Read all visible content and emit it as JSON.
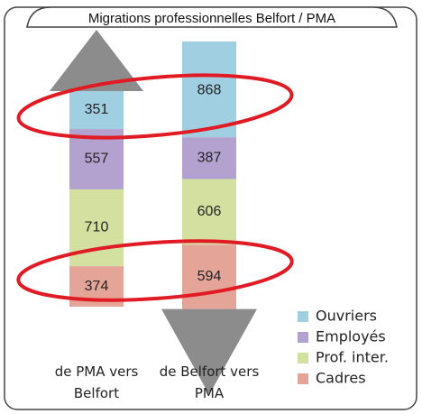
{
  "chart_data": {
    "type": "stacked-arrow",
    "title": "Migrations professionnelles Belfort / PMA",
    "categories": [
      "de PMA vers Belfort",
      "de Belfort vers PMA"
    ],
    "series": [
      {
        "name": "Ouvriers",
        "color": "#9fcfe0",
        "values": [
          351,
          868
        ]
      },
      {
        "name": "Employés",
        "color": "#b3a2cf",
        "values": [
          557,
          387
        ]
      },
      {
        "name": "Prof. inter.",
        "color": "#d4e0a0",
        "values": [
          710,
          606
        ]
      },
      {
        "name": "Cadres",
        "color": "#e5a498",
        "values": [
          374,
          594
        ]
      }
    ],
    "arrow_color": "#8c8c8c",
    "legend": "bottom-right"
  }
}
